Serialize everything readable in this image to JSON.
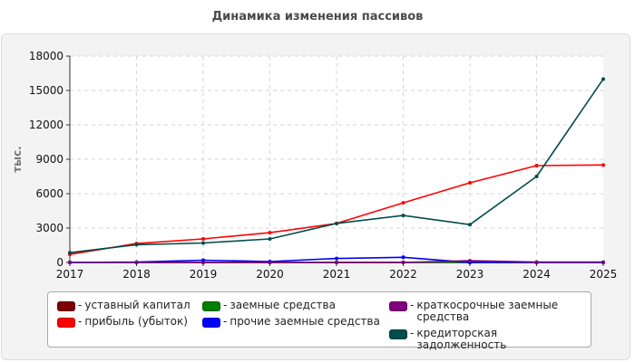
{
  "chart_data": {
    "type": "line",
    "title": "Динамика изменения пассивов",
    "ylabel": "тыс.",
    "xlabel": "",
    "x": [
      "2017",
      "2018",
      "2019",
      "2020",
      "2021",
      "2022",
      "2023",
      "2024",
      "2025"
    ],
    "ylim": [
      0,
      18000
    ],
    "yticks": [
      "0",
      "3000",
      "6000",
      "9000",
      "12000",
      "15000",
      "18000"
    ],
    "ytick_values": [
      0,
      3000,
      6000,
      9000,
      12000,
      15000,
      18000
    ],
    "grid": true,
    "legend_position": "bottom",
    "series": [
      {
        "name": "уставный капитал",
        "color": "#7f0000",
        "values": [
          10,
          10,
          10,
          10,
          10,
          10,
          10,
          10,
          10
        ]
      },
      {
        "name": "прибыль (убыток)",
        "color": "#ff0000",
        "values": [
          700,
          1650,
          2050,
          2600,
          3400,
          5200,
          6950,
          8450,
          8500
        ]
      },
      {
        "name": "заемные средства",
        "color": "#008000",
        "values": [
          0,
          0,
          0,
          0,
          0,
          0,
          0,
          0,
          0
        ]
      },
      {
        "name": "прочие заемные средства",
        "color": "#0000ff",
        "values": [
          0,
          30,
          200,
          80,
          350,
          450,
          0,
          0,
          0
        ]
      },
      {
        "name": "краткосрочные заемные средства",
        "color": "#800080",
        "values": [
          0,
          0,
          0,
          0,
          0,
          0,
          150,
          30,
          30
        ]
      },
      {
        "name": "кредиторская задолженность",
        "color": "#004d4d",
        "values": [
          850,
          1550,
          1700,
          2050,
          3400,
          4100,
          3300,
          7500,
          16000
        ]
      }
    ]
  }
}
